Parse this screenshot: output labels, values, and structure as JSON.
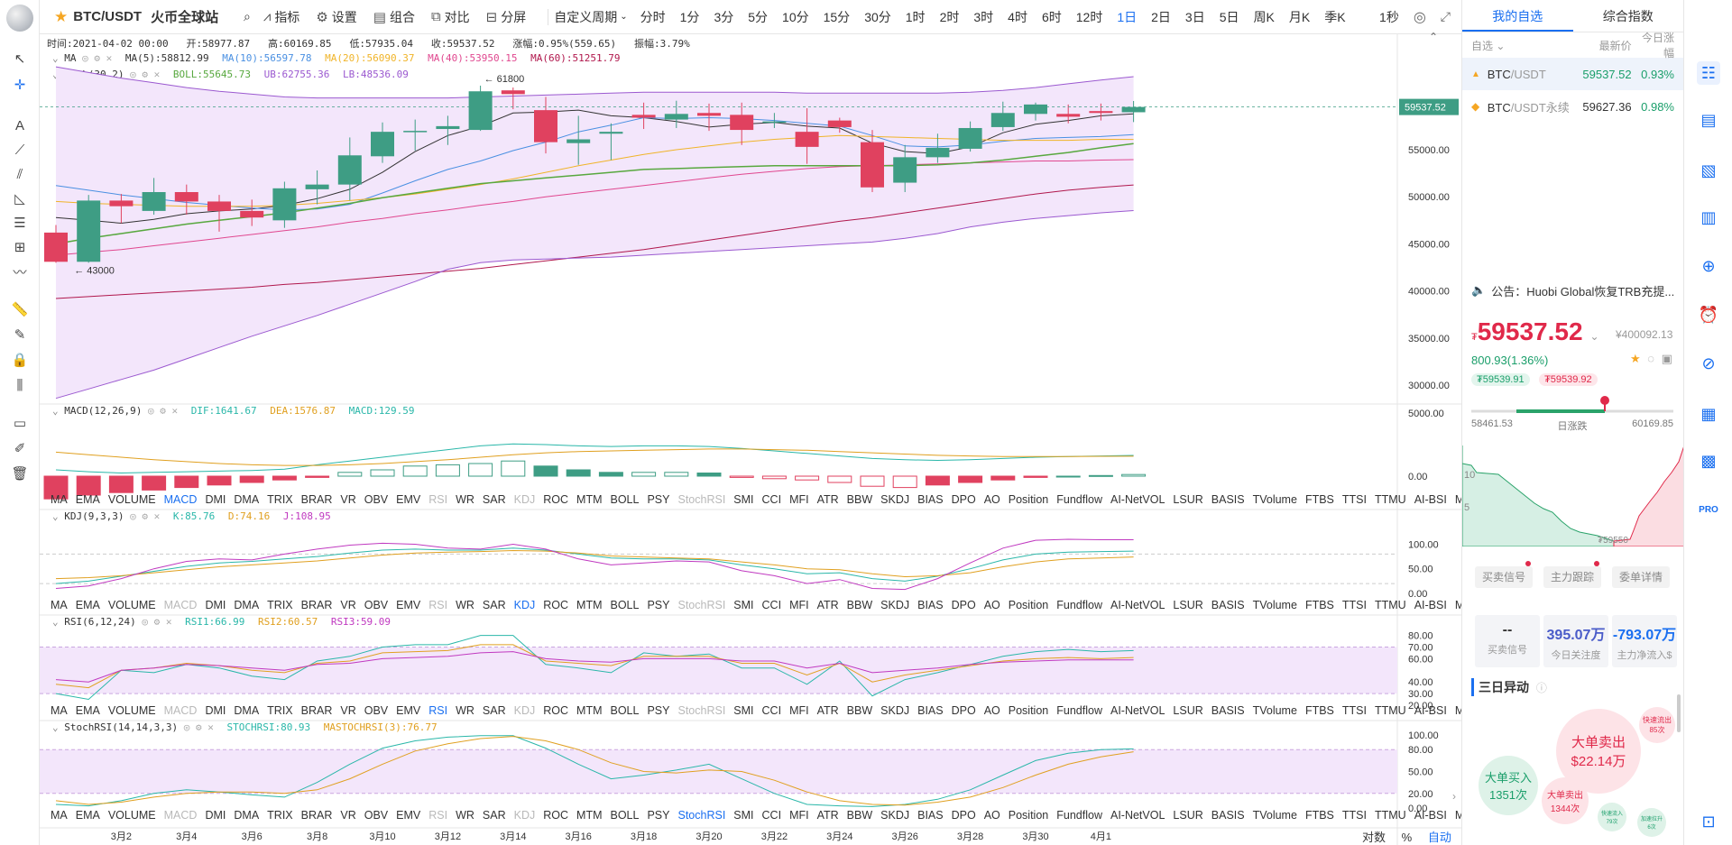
{
  "topbar": {
    "symbol": "BTC/USDT",
    "exchange": "火币全球站",
    "tools": [
      "指标",
      "设置",
      "组合",
      "对比",
      "分屏"
    ],
    "custom_period": "自定义周期",
    "periods": [
      "分时",
      "1分",
      "3分",
      "5分",
      "10分",
      "15分",
      "30分",
      "1时",
      "2时",
      "3时",
      "4时",
      "6时",
      "12时",
      "1日",
      "2日",
      "3日",
      "5日",
      "周K",
      "月K",
      "季K"
    ],
    "active_period": "1日",
    "refresh": "1秒"
  },
  "ohlc": {
    "time": "时间:2021-04-02 00:00",
    "open": "开:58977.87",
    "high": "高:60169.85",
    "low": "低:57935.04",
    "close": "收:59537.52",
    "change": "涨幅:0.95%(559.65)",
    "amplitude": "振幅:3.79%"
  },
  "ma_legend": {
    "name": "MA",
    "items": [
      {
        "text": "MA(5):58812.99",
        "color": "#333333"
      },
      {
        "text": "MA(10):56597.78",
        "color": "#4a90e2"
      },
      {
        "text": "MA(20):56090.37",
        "color": "#f0b429"
      },
      {
        "text": "MA(40):53950.15",
        "color": "#e0478f"
      },
      {
        "text": "MA(60):51251.79",
        "color": "#b0174c"
      }
    ]
  },
  "boll_legend": {
    "name": "BOLL(30,2)",
    "items": [
      {
        "text": "BOLL:55645.73",
        "color": "#58a83f"
      },
      {
        "text": "UB:62755.36",
        "color": "#9b59d0"
      },
      {
        "text": "LB:48536.09",
        "color": "#9b59d0"
      }
    ]
  },
  "price_axis": [
    "60000.00",
    "55000.00",
    "50000.00",
    "45000.00",
    "40000.00",
    "35000.00",
    "30000.00"
  ],
  "last_price_tag": "59537.52",
  "high_marker": "61800",
  "low_marker": "43000",
  "macd_legend": {
    "name": "MACD(12,26,9)",
    "items": [
      {
        "text": "DIF:1641.67",
        "color": "#2ab7a9"
      },
      {
        "text": "DEA:1576.87",
        "color": "#e0a020"
      },
      {
        "text": "MACD:129.59",
        "color": "#2ab7a9"
      }
    ]
  },
  "macd_axis": [
    "5000.00",
    "0.00"
  ],
  "kdj_legend": {
    "name": "KDJ(9,3,3)",
    "items": [
      {
        "text": "K:85.76",
        "color": "#2ab7a9"
      },
      {
        "text": "D:74.16",
        "color": "#e0a020"
      },
      {
        "text": "J:108.95",
        "color": "#c039c0"
      }
    ]
  },
  "kdj_axis": [
    "100.00",
    "50.00",
    "0.00"
  ],
  "rsi_legend": {
    "name": "RSI(6,12,24)",
    "items": [
      {
        "text": "RSI1:66.99",
        "color": "#2ab7a9"
      },
      {
        "text": "RSI2:60.57",
        "color": "#e0a020"
      },
      {
        "text": "RSI3:59.09",
        "color": "#c039c0"
      }
    ]
  },
  "rsi_axis": [
    "80.00",
    "70.00",
    "60.00",
    "40.00",
    "30.00",
    "20.00"
  ],
  "stochrsi_legend": {
    "name": "StochRSI(14,14,3,3)",
    "items": [
      {
        "text": "STOCHRSI:80.93",
        "color": "#2ab7a9"
      },
      {
        "text": "MASTOCHRSI(3):76.77",
        "color": "#e0a020"
      }
    ]
  },
  "stochrsi_axis": [
    "100.00",
    "80.00",
    "50.00",
    "20.00",
    "0.00"
  ],
  "indicator_names": [
    "MA",
    "EMA",
    "VOLUME",
    "MACD",
    "DMI",
    "DMA",
    "TRIX",
    "BRAR",
    "VR",
    "OBV",
    "EMV",
    "RSI",
    "WR",
    "SAR",
    "KDJ",
    "ROC",
    "MTM",
    "BOLL",
    "PSY",
    "StochRSI",
    "SMI",
    "CCI",
    "MFI",
    "ATR",
    "BBW",
    "SKDJ",
    "BIAS",
    "DPO",
    "AO",
    "Position",
    "Fundflow",
    "AI-NetVOL",
    "LSUR",
    "BASIS",
    "TVolume",
    "FTBS",
    "TTSI",
    "TTMU",
    "AI-BSI",
    "MLR",
    "AI-PD"
  ],
  "indicator_rows": [
    {
      "active": "MACD",
      "dim": [
        "RSI",
        "KDJ",
        "StochRSI"
      ]
    },
    {
      "active": "KDJ",
      "dim": [
        "MACD",
        "RSI",
        "StochRSI"
      ]
    },
    {
      "active": "RSI",
      "dim": [
        "MACD",
        "KDJ",
        "StochRSI"
      ]
    },
    {
      "active": "StochRSI",
      "dim": [
        "MACD",
        "RSI",
        "KDJ"
      ]
    }
  ],
  "date_axis": [
    "3月2",
    "3月4",
    "3月6",
    "3月8",
    "3月10",
    "3月12",
    "3月14",
    "3月16",
    "3月18",
    "3月20",
    "3月22",
    "3月24",
    "3月26",
    "3月28",
    "3月30",
    "4月1"
  ],
  "bottom_controls": {
    "log": "对数",
    "percent": "%",
    "auto": "自动"
  },
  "chart_data": {
    "type": "candlestick",
    "dates": [
      "2/28",
      "3/1",
      "3/2",
      "3/3",
      "3/4",
      "3/5",
      "3/6",
      "3/7",
      "3/8",
      "3/9",
      "3/10",
      "3/11",
      "3/12",
      "3/13",
      "3/14",
      "3/15",
      "3/16",
      "3/17",
      "3/18",
      "3/19",
      "3/20",
      "3/21",
      "3/22",
      "3/23",
      "3/24",
      "3/25",
      "3/26",
      "3/27",
      "3/28",
      "3/29",
      "3/30",
      "3/31",
      "4/1",
      "4/2"
    ],
    "open": [
      46200,
      43100,
      49600,
      48500,
      50500,
      49500,
      48500,
      47500,
      50800,
      51300,
      54300,
      57000,
      57200,
      57100,
      61300,
      59200,
      55700,
      56700,
      58700,
      58200,
      58900,
      58700,
      58000,
      56900,
      58100,
      55800,
      51500,
      54200,
      55100,
      57400,
      58800,
      58800,
      59100,
      58977
    ],
    "close": [
      43100,
      49600,
      49000,
      50500,
      49500,
      48500,
      47800,
      50900,
      51300,
      54400,
      56900,
      57000,
      57500,
      61200,
      60900,
      55800,
      56100,
      56900,
      58400,
      58800,
      58600,
      57100,
      58000,
      55300,
      57400,
      51000,
      54200,
      55200,
      57300,
      58900,
      59800,
      58500,
      58900,
      59537
    ],
    "high": [
      47000,
      50200,
      50300,
      52000,
      51300,
      50200,
      49700,
      51600,
      52800,
      56300,
      57900,
      58200,
      58600,
      61800,
      61600,
      60600,
      58600,
      57800,
      60000,
      60200,
      59900,
      60000,
      58900,
      59400,
      58400,
      57100,
      55500,
      56700,
      58000,
      60100,
      60000,
      59800,
      59900,
      60169
    ],
    "low": [
      43000,
      43000,
      47200,
      48100,
      48100,
      46300,
      46900,
      46700,
      49200,
      49600,
      53600,
      54900,
      55500,
      57000,
      59300,
      54600,
      53400,
      53900,
      57200,
      57300,
      57000,
      55500,
      57300,
      53500,
      56800,
      50500,
      50500,
      53600,
      54800,
      57000,
      58100,
      57800,
      58100,
      57935
    ],
    "series": [
      {
        "name": "MA(5)",
        "color": "#333333",
        "values": [
          47800,
          47500,
          47200,
          47600,
          48200,
          48500,
          48700,
          49100,
          49800,
          50800,
          52600,
          54800,
          56500,
          57500,
          58900,
          59000,
          59200,
          58600,
          58400,
          58000,
          57400,
          57700,
          57900,
          57500,
          57300,
          55700,
          54800,
          54600,
          55300,
          56800,
          57700,
          58100,
          58600,
          58813
        ]
      },
      {
        "name": "MA(10)",
        "color": "#4a90e2",
        "values": [
          51200,
          50700,
          50200,
          49800,
          49400,
          49100,
          48800,
          48600,
          48700,
          49200,
          50400,
          51700,
          52900,
          53800,
          54900,
          55800,
          56900,
          57600,
          58400,
          58300,
          58400,
          58300,
          58100,
          57800,
          57500,
          56500,
          55400,
          55300,
          55500,
          55900,
          56200,
          56300,
          56400,
          56598
        ]
      },
      {
        "name": "MA(20)",
        "color": "#f0b429",
        "values": [
          49500,
          49300,
          49200,
          49100,
          49000,
          49000,
          49000,
          49100,
          49300,
          49600,
          49900,
          50300,
          50800,
          51300,
          51900,
          52600,
          53300,
          53900,
          54500,
          55000,
          55400,
          55800,
          56100,
          56300,
          56500,
          56400,
          56300,
          56200,
          56100,
          56000,
          56000,
          56000,
          56100,
          56090
        ]
      },
      {
        "name": "MA(40)",
        "color": "#e0478f",
        "values": [
          43800,
          44100,
          44400,
          44800,
          45200,
          45600,
          46000,
          46400,
          46800,
          47300,
          47700,
          48200,
          48600,
          49100,
          49500,
          50000,
          50400,
          50800,
          51200,
          51600,
          52000,
          52400,
          52700,
          53000,
          53200,
          53300,
          53400,
          53500,
          53600,
          53700,
          53800,
          53800,
          53900,
          53950
        ]
      },
      {
        "name": "MA(60)",
        "color": "#b0174c",
        "values": [
          39200,
          39400,
          39600,
          39800,
          40000,
          40200,
          40400,
          40700,
          40900,
          41200,
          41500,
          41800,
          42100,
          42400,
          42800,
          43200,
          43600,
          44000,
          44400,
          44900,
          45400,
          45900,
          46400,
          46900,
          47400,
          47800,
          48300,
          48800,
          49300,
          49800,
          50300,
          50700,
          51000,
          51252
        ]
      },
      {
        "name": "BOLL",
        "color": "#58a83f",
        "values": [
          45000,
          45600,
          46100,
          46600,
          47100,
          47500,
          47900,
          48300,
          48800,
          49300,
          49900,
          50400,
          50900,
          51400,
          51700,
          52000,
          52300,
          52600,
          52900,
          53000,
          53100,
          53200,
          53300,
          53300,
          53300,
          53300,
          53300,
          53400,
          53600,
          53900,
          54300,
          54700,
          55200,
          55646
        ]
      },
      {
        "name": "UB",
        "color": "#9b59d0",
        "values": [
          63800,
          63200,
          62600,
          62100,
          61600,
          61200,
          60900,
          60600,
          60500,
          60500,
          60500,
          60500,
          60500,
          60600,
          60700,
          60800,
          60900,
          61000,
          61100,
          61100,
          61100,
          61100,
          61100,
          61000,
          61000,
          61000,
          61000,
          61000,
          61100,
          61300,
          61600,
          62000,
          62400,
          62755
        ]
      },
      {
        "name": "LB",
        "color": "#9b59d0",
        "values": [
          28600,
          29600,
          30600,
          31600,
          32800,
          34000,
          35200,
          36300,
          37400,
          38600,
          39800,
          41000,
          42300,
          43000,
          43300,
          43400,
          43500,
          43600,
          43800,
          44000,
          44200,
          44400,
          44600,
          44800,
          45000,
          45200,
          45600,
          46100,
          46800,
          47300,
          47700,
          48000,
          48300,
          48536
        ]
      }
    ],
    "macd": {
      "dif": [
        500,
        350,
        250,
        300,
        350,
        400,
        450,
        550,
        900,
        1200,
        1500,
        1800,
        2100,
        2400,
        2550,
        2500,
        2400,
        2350,
        2400,
        2400,
        2350,
        2200,
        2000,
        1800,
        1600,
        1400,
        1300,
        1250,
        1300,
        1400,
        1500,
        1550,
        1600,
        1642
      ],
      "dea": [
        1900,
        1700,
        1500,
        1300,
        1150,
        1000,
        900,
        850,
        850,
        900,
        1000,
        1150,
        1300,
        1500,
        1700,
        1850,
        1950,
        2000,
        2050,
        2100,
        2150,
        2150,
        2100,
        2050,
        1950,
        1850,
        1750,
        1650,
        1600,
        1550,
        1550,
        1560,
        1570,
        1577
      ],
      "hist": [
        -1800,
        -1500,
        -1300,
        -1100,
        -900,
        -700,
        -500,
        -300,
        -100,
        300,
        500,
        800,
        900,
        1000,
        1200,
        800,
        500,
        300,
        300,
        300,
        250,
        -100,
        -200,
        -300,
        -500,
        -800,
        -900,
        -700,
        -500,
        -300,
        -100,
        0,
        50,
        130
      ]
    },
    "kdj": {
      "k": [
        20,
        25,
        35,
        45,
        55,
        62,
        65,
        70,
        75,
        82,
        88,
        90,
        88,
        88,
        92,
        88,
        80,
        72,
        70,
        70,
        68,
        58,
        50,
        40,
        42,
        30,
        25,
        35,
        50,
        68,
        80,
        84,
        85,
        86
      ],
      "d": [
        30,
        32,
        36,
        42,
        48,
        54,
        58,
        62,
        66,
        72,
        78,
        82,
        84,
        85,
        87,
        86,
        82,
        76,
        74,
        72,
        70,
        64,
        58,
        50,
        48,
        40,
        34,
        36,
        42,
        54,
        64,
        70,
        72,
        74
      ],
      "j": [
        10,
        15,
        30,
        50,
        65,
        70,
        68,
        80,
        90,
        98,
        102,
        100,
        92,
        90,
        100,
        90,
        70,
        58,
        62,
        66,
        64,
        46,
        36,
        20,
        28,
        10,
        8,
        30,
        62,
        92,
        108,
        110,
        109,
        109
      ]
    },
    "rsi": {
      "rsi1": [
        30,
        25,
        50,
        48,
        55,
        52,
        45,
        42,
        58,
        62,
        70,
        72,
        72,
        80,
        80,
        55,
        52,
        48,
        65,
        62,
        64,
        52,
        52,
        38,
        58,
        28,
        42,
        48,
        55,
        62,
        66,
        68,
        66,
        67
      ],
      "rsi2": [
        38,
        35,
        50,
        52,
        56,
        54,
        50,
        48,
        56,
        58,
        65,
        66,
        67,
        72,
        72,
        58,
        56,
        54,
        62,
        62,
        62,
        56,
        56,
        46,
        56,
        40,
        46,
        50,
        54,
        58,
        60,
        61,
        60,
        61
      ],
      "rsi3": [
        42,
        40,
        50,
        52,
        55,
        54,
        52,
        50,
        55,
        56,
        60,
        61,
        62,
        65,
        66,
        60,
        58,
        57,
        60,
        60,
        60,
        58,
        58,
        52,
        56,
        48,
        50,
        52,
        55,
        57,
        58,
        59,
        59,
        59
      ]
    },
    "stochrsi": {
      "k": [
        5,
        3,
        10,
        20,
        25,
        22,
        18,
        15,
        35,
        60,
        82,
        92,
        97,
        99,
        99,
        82,
        60,
        40,
        45,
        52,
        60,
        40,
        20,
        5,
        3,
        2,
        5,
        12,
        25,
        45,
        65,
        75,
        80,
        81
      ],
      "d": [
        10,
        5,
        8,
        15,
        20,
        22,
        22,
        20,
        25,
        40,
        60,
        78,
        88,
        95,
        98,
        92,
        80,
        62,
        50,
        48,
        52,
        50,
        38,
        22,
        10,
        5,
        4,
        8,
        15,
        28,
        45,
        60,
        70,
        77
      ]
    }
  },
  "right_panel": {
    "tabs": [
      "我的自选",
      "综合指数"
    ],
    "watchlist_header": {
      "group": "自选",
      "last": "最新价",
      "change": "今日涨幅"
    },
    "watchlist": [
      {
        "name": "BTC",
        "quote": "/USDT",
        "price": "59537.52",
        "change": "0.93%"
      },
      {
        "name": "BTC",
        "quote": "/USDT永续",
        "price": "59627.36",
        "change": "0.98%"
      }
    ],
    "notice": "公告：Huobi Global恢复TRB充提...",
    "price": "59537.52",
    "price_prefix": "₮",
    "cny_price": "¥400092.13",
    "change": "800.93(1.36%)",
    "bid_tag": "₮59539.91",
    "ask_tag": "₮59539.92",
    "range_low": "58461.53",
    "range_label": "日涨跌",
    "range_high": "60169.85",
    "depth_marker": "₮59550",
    "buttons": [
      "买卖信号",
      "主力跟踪",
      "委单详情"
    ],
    "stats": [
      {
        "value": "--",
        "label": "买卖信号",
        "color": "#333333"
      },
      {
        "value": "395.07万",
        "label": "今日关注度",
        "color": "#4a5cc9"
      },
      {
        "value": "-793.07万",
        "label": "主力净流入$",
        "color": "#1a6ff0"
      }
    ],
    "three_day_title": "三日异动",
    "bubbles": [
      {
        "title": "大单卖出",
        "value": "$22.14万"
      },
      {
        "title": "快速流出",
        "value": "85次"
      },
      {
        "title": "大单买入",
        "value": "1351次"
      },
      {
        "title": "大单卖出",
        "value": "1344次"
      },
      {
        "title": "快速流入",
        "value": "79次"
      },
      {
        "title": "加速拉升",
        "value": "6次"
      }
    ]
  }
}
